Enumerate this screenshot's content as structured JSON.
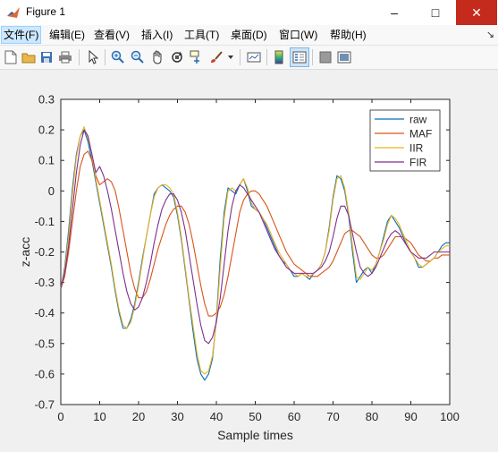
{
  "window": {
    "title": "Figure 1",
    "minimize_glyph": "–",
    "maximize_glyph": "□",
    "close_glyph": "✕"
  },
  "menu": {
    "items": [
      {
        "label": "文件(F)",
        "active": true
      },
      {
        "label": "编辑(E)"
      },
      {
        "label": "查看(V)"
      },
      {
        "label": "插入(I)"
      },
      {
        "label": "工具(T)"
      },
      {
        "label": "桌面(D)"
      },
      {
        "label": "窗口(W)"
      },
      {
        "label": "帮助(H)"
      }
    ],
    "pin_glyph": "↘"
  },
  "toolbar": {
    "buttons": [
      "new-figure-icon",
      "open-file-icon",
      "save-icon",
      "print-icon",
      "pointer-icon",
      "zoom-in-icon",
      "zoom-out-icon",
      "pan-icon",
      "rotate-3d-icon",
      "data-cursor-icon",
      "brush-icon",
      "brush-dropdown-icon",
      "link-plot-icon",
      "insert-colorbar-icon",
      "insert-legend-icon",
      "hide-plot-tools-icon",
      "show-plot-tools-icon"
    ]
  },
  "chart_data": {
    "type": "line",
    "xlabel": "Sample times",
    "ylabel": "z-acc",
    "xlim": [
      0,
      100
    ],
    "ylim": [
      -0.7,
      0.3
    ],
    "xticks": [
      "0",
      "10",
      "20",
      "30",
      "40",
      "50",
      "60",
      "70",
      "80",
      "90",
      "100"
    ],
    "yticks": [
      "0.3",
      "0.2",
      "0.1",
      "0",
      "-0.1",
      "-0.2",
      "-0.3",
      "-0.4",
      "-0.5",
      "-0.6",
      "-0.7"
    ],
    "grid": false,
    "legend_position": "top-right",
    "x": [
      0,
      1,
      2,
      3,
      4,
      5,
      6,
      7,
      8,
      9,
      10,
      11,
      12,
      13,
      14,
      15,
      16,
      17,
      18,
      19,
      20,
      21,
      22,
      23,
      24,
      25,
      26,
      27,
      28,
      29,
      30,
      31,
      32,
      33,
      34,
      35,
      36,
      37,
      38,
      39,
      40,
      41,
      42,
      43,
      44,
      45,
      46,
      47,
      48,
      49,
      50,
      51,
      52,
      53,
      54,
      55,
      56,
      57,
      58,
      59,
      60,
      61,
      62,
      63,
      64,
      65,
      66,
      67,
      68,
      69,
      70,
      71,
      72,
      73,
      74,
      75,
      76,
      77,
      78,
      79,
      80,
      81,
      82,
      83,
      84,
      85,
      86,
      87,
      88,
      89,
      90,
      91,
      92,
      93,
      94,
      95,
      96,
      97,
      98,
      99,
      100
    ],
    "series": [
      {
        "name": "raw",
        "color": "#0072BD",
        "values": [
          -0.32,
          -0.25,
          -0.13,
          0.01,
          0.12,
          0.18,
          0.2,
          0.16,
          0.1,
          0.03,
          -0.04,
          -0.11,
          -0.18,
          -0.25,
          -0.33,
          -0.4,
          -0.45,
          -0.45,
          -0.42,
          -0.37,
          -0.3,
          -0.22,
          -0.15,
          -0.08,
          -0.01,
          0.01,
          0.02,
          0.01,
          0.0,
          -0.02,
          -0.08,
          -0.16,
          -0.26,
          -0.36,
          -0.46,
          -0.55,
          -0.6,
          -0.62,
          -0.6,
          -0.55,
          -0.42,
          -0.22,
          -0.07,
          0.01,
          0.0,
          -0.01,
          0.02,
          0.04,
          0.0,
          -0.05,
          -0.06,
          -0.07,
          -0.09,
          -0.12,
          -0.15,
          -0.18,
          -0.21,
          -0.23,
          -0.24,
          -0.26,
          -0.28,
          -0.28,
          -0.27,
          -0.28,
          -0.29,
          -0.27,
          -0.26,
          -0.24,
          -0.2,
          -0.12,
          -0.02,
          0.05,
          0.04,
          0.0,
          -0.08,
          -0.2,
          -0.3,
          -0.28,
          -0.26,
          -0.25,
          -0.27,
          -0.24,
          -0.2,
          -0.15,
          -0.1,
          -0.08,
          -0.1,
          -0.12,
          -0.15,
          -0.18,
          -0.2,
          -0.22,
          -0.25,
          -0.25,
          -0.24,
          -0.23,
          -0.22,
          -0.2,
          -0.18,
          -0.17,
          -0.17
        ]
      },
      {
        "name": "MAF",
        "color": "#D95319",
        "values": [
          -0.32,
          -0.28,
          -0.2,
          -0.1,
          0.0,
          0.08,
          0.12,
          0.13,
          0.1,
          0.05,
          0.02,
          0.03,
          0.04,
          0.03,
          0.0,
          -0.06,
          -0.13,
          -0.2,
          -0.27,
          -0.32,
          -0.35,
          -0.35,
          -0.33,
          -0.29,
          -0.24,
          -0.19,
          -0.15,
          -0.11,
          -0.08,
          -0.06,
          -0.05,
          -0.05,
          -0.07,
          -0.11,
          -0.17,
          -0.24,
          -0.31,
          -0.37,
          -0.41,
          -0.41,
          -0.4,
          -0.38,
          -0.34,
          -0.28,
          -0.21,
          -0.14,
          -0.07,
          -0.03,
          -0.01,
          0.0,
          0.0,
          -0.01,
          -0.03,
          -0.05,
          -0.08,
          -0.11,
          -0.14,
          -0.17,
          -0.2,
          -0.22,
          -0.24,
          -0.25,
          -0.26,
          -0.27,
          -0.28,
          -0.28,
          -0.28,
          -0.27,
          -0.26,
          -0.25,
          -0.23,
          -0.2,
          -0.17,
          -0.14,
          -0.13,
          -0.13,
          -0.14,
          -0.15,
          -0.17,
          -0.19,
          -0.21,
          -0.22,
          -0.22,
          -0.21,
          -0.19,
          -0.17,
          -0.15,
          -0.15,
          -0.15,
          -0.16,
          -0.17,
          -0.19,
          -0.21,
          -0.22,
          -0.23,
          -0.23,
          -0.22,
          -0.22,
          -0.21,
          -0.21,
          -0.21
        ]
      },
      {
        "name": "IIR",
        "color": "#EDB120",
        "values": [
          -0.32,
          -0.26,
          -0.15,
          -0.01,
          0.11,
          0.18,
          0.21,
          0.17,
          0.12,
          0.04,
          -0.03,
          -0.1,
          -0.17,
          -0.24,
          -0.32,
          -0.39,
          -0.44,
          -0.45,
          -0.43,
          -0.38,
          -0.31,
          -0.23,
          -0.15,
          -0.08,
          -0.02,
          0.01,
          0.02,
          0.02,
          0.01,
          -0.01,
          -0.07,
          -0.15,
          -0.25,
          -0.35,
          -0.44,
          -0.53,
          -0.59,
          -0.6,
          -0.59,
          -0.54,
          -0.43,
          -0.25,
          -0.09,
          0.0,
          0.01,
          0.0,
          0.02,
          0.04,
          0.01,
          -0.04,
          -0.06,
          -0.07,
          -0.09,
          -0.11,
          -0.14,
          -0.17,
          -0.2,
          -0.22,
          -0.24,
          -0.26,
          -0.27,
          -0.28,
          -0.27,
          -0.28,
          -0.28,
          -0.27,
          -0.26,
          -0.24,
          -0.2,
          -0.13,
          -0.03,
          0.04,
          0.05,
          0.01,
          -0.07,
          -0.18,
          -0.28,
          -0.29,
          -0.27,
          -0.25,
          -0.26,
          -0.24,
          -0.2,
          -0.16,
          -0.11,
          -0.08,
          -0.09,
          -0.11,
          -0.14,
          -0.17,
          -0.2,
          -0.22,
          -0.24,
          -0.25,
          -0.24,
          -0.23,
          -0.22,
          -0.2,
          -0.19,
          -0.18,
          -0.18
        ]
      },
      {
        "name": "FIR",
        "color": "#7E2F8E",
        "values": [
          -0.32,
          -0.27,
          -0.18,
          -0.06,
          0.06,
          0.15,
          0.2,
          0.18,
          0.12,
          0.06,
          0.08,
          0.05,
          0.0,
          -0.06,
          -0.13,
          -0.2,
          -0.27,
          -0.33,
          -0.37,
          -0.39,
          -0.38,
          -0.35,
          -0.3,
          -0.24,
          -0.17,
          -0.11,
          -0.06,
          -0.03,
          -0.01,
          -0.01,
          -0.03,
          -0.07,
          -0.13,
          -0.21,
          -0.29,
          -0.37,
          -0.44,
          -0.49,
          -0.5,
          -0.48,
          -0.43,
          -0.35,
          -0.24,
          -0.13,
          -0.05,
          0.0,
          0.02,
          0.01,
          -0.01,
          -0.03,
          -0.05,
          -0.07,
          -0.1,
          -0.13,
          -0.16,
          -0.19,
          -0.21,
          -0.23,
          -0.25,
          -0.26,
          -0.27,
          -0.27,
          -0.27,
          -0.27,
          -0.27,
          -0.27,
          -0.26,
          -0.25,
          -0.23,
          -0.2,
          -0.15,
          -0.09,
          -0.05,
          -0.05,
          -0.08,
          -0.14,
          -0.2,
          -0.25,
          -0.27,
          -0.28,
          -0.27,
          -0.25,
          -0.22,
          -0.19,
          -0.16,
          -0.14,
          -0.13,
          -0.14,
          -0.16,
          -0.18,
          -0.2,
          -0.21,
          -0.22,
          -0.22,
          -0.22,
          -0.21,
          -0.2,
          -0.2,
          -0.2,
          -0.2,
          -0.2
        ]
      }
    ]
  }
}
